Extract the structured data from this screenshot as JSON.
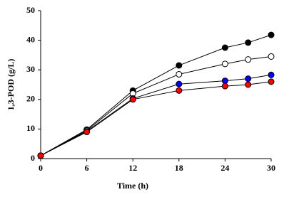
{
  "chart_data": {
    "type": "line",
    "x_label": "Time (h)",
    "y_label": "1,3-POD (g/L)",
    "x": [
      0,
      6,
      12,
      18,
      24,
      27,
      30
    ],
    "series": [
      {
        "color": "#000000",
        "values": [
          1,
          9.8,
          23,
          31.5,
          37.5,
          39.2,
          41.8
        ]
      },
      {
        "color": "#ffffff",
        "values": [
          1,
          9.5,
          22,
          28.5,
          32,
          33.5,
          34.5
        ]
      },
      {
        "color": "#0000ff",
        "values": [
          1,
          9.2,
          20.3,
          25.2,
          26.3,
          27,
          28.3
        ]
      },
      {
        "color": "#ff0000",
        "values": [
          1,
          9,
          20,
          23,
          24.5,
          25,
          26
        ]
      }
    ],
    "xlim": [
      0,
      30
    ],
    "xticks": [
      0,
      6,
      12,
      18,
      24,
      30
    ],
    "ylim": [
      0,
      50
    ],
    "yticks": [
      0,
      10,
      20,
      30,
      40,
      50
    ]
  }
}
